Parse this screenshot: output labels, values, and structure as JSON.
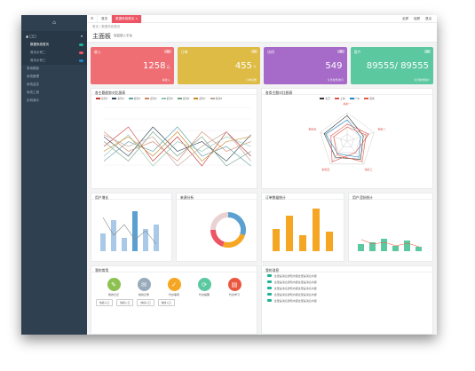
{
  "app": {
    "logo": "⌂",
    "user": "▲ □□",
    "menu": [
      {
        "label": "数据系统首页",
        "badge": "#1ab394",
        "sub": true,
        "active": true
      },
      {
        "label": "首页示例二",
        "badge": "#ed5565",
        "sub": true,
        "active": false
      },
      {
        "label": "首页示例三",
        "badge": "#1c84c6",
        "sub": true,
        "active": false
      },
      {
        "label": "常用模板",
        "badge": "",
        "sub": false,
        "active": false
      },
      {
        "label": "系统管理",
        "badge": "",
        "sub": false,
        "active": false
      },
      {
        "label": "系统监控",
        "badge": "",
        "sub": false,
        "active": false
      },
      {
        "label": "系统工具",
        "badge": "",
        "sub": false,
        "active": false
      },
      {
        "label": "实例演示",
        "badge": "",
        "sub": false,
        "active": false
      }
    ]
  },
  "topbar": {
    "tabs": [
      "☰",
      "首页",
      "数据系统首页 ×"
    ],
    "right": [
      "全屏",
      "锁屏",
      "退出"
    ]
  },
  "breadcrumb": "首页 / 数据系统首页",
  "page": {
    "title": "主面板",
    "subtitle": "欢迎进入平台"
  },
  "cards": [
    {
      "title": "收入",
      "badge": "月",
      "value": "1258",
      "unit": "元",
      "sub": "总收入",
      "color": "#ee6e73"
    },
    {
      "title": "订单",
      "badge": "月",
      "value": "455",
      "unit": "个",
      "sub": "订单总数",
      "color": "#ddbb44"
    },
    {
      "title": "访问",
      "badge": "年",
      "value": "549",
      "unit": "",
      "sub": "今日新增访问",
      "color": "#a66ac8"
    },
    {
      "title": "用户",
      "badge": "月",
      "value": "89555/ 89555",
      "unit": "",
      "sub": "今日新增用户",
      "color": "#5cc8a0"
    }
  ],
  "line_panel": {
    "title": "各主题趋势对比图表",
    "legend": [
      "系列1",
      "系列2",
      "系列3",
      "系列4",
      "系列5",
      "系列6",
      "系列7",
      "系列8"
    ]
  },
  "radar_panel": {
    "title": "各类主题对比图表",
    "legend": [
      "北京",
      "上海",
      "广州",
      "深圳"
    ],
    "axes": [
      "指标一",
      "指标二",
      "指标三",
      "指标四",
      "指标五"
    ]
  },
  "small_panels": [
    {
      "title": "用户增长"
    },
    {
      "title": "来源分析"
    },
    {
      "title": "订单数量统计"
    },
    {
      "title": "用户活跃统计"
    }
  ],
  "shortcuts": {
    "title": "我的常用",
    "items": [
      {
        "label": "我的日记",
        "color": "#8cc152",
        "icon": "✎"
      },
      {
        "label": "我的记录",
        "color": "#9ab",
        "icon": "✉"
      },
      {
        "label": "代办事项",
        "color": "#f5a623",
        "icon": "✓"
      },
      {
        "label": "代办提醒",
        "color": "#5cc8a0",
        "icon": "⟳"
      },
      {
        "label": "代办学习",
        "color": "#e9573f",
        "icon": "▤"
      }
    ],
    "buttons": [
      "快捷入口",
      "快捷入口",
      "快捷入口",
      "快捷入口"
    ]
  },
  "news": {
    "title": "我的消息",
    "items": [
      {
        "text": "这里是消息通知内容这里是消息内容",
        "tag": "#f5a623"
      },
      {
        "text": "这里是消息通知内容这里是消息内容",
        "tag": "#f5a623"
      },
      {
        "text": "这里是消息通知内容这里是消息内容",
        "tag": "#f5a623"
      },
      {
        "text": "这里是消息通知内容这里是消息内容",
        "tag": "#f5a623"
      },
      {
        "text": "这里是消息通知内容这里是消息内容",
        "tag": "#f5a623"
      }
    ]
  }
}
